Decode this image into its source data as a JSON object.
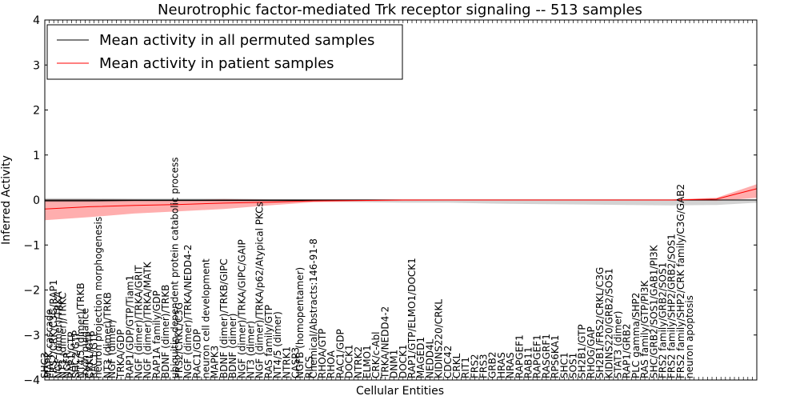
{
  "chart_data": {
    "type": "line",
    "title": "Neurotrophic factor-mediated Trk receptor signaling -- 513 samples",
    "xlabel": "Cellular Entities",
    "ylabel": "Inferred Activity",
    "ylim": [
      -4,
      4
    ],
    "yticks": [
      "−4",
      "−3",
      "−2",
      "−1",
      "0",
      "1",
      "2",
      "3",
      "4"
    ],
    "legend_position": "top-left",
    "colors": {
      "permuted": "#000000",
      "patient": "#ff0000",
      "patient_band": "#ff9a9a",
      "permuted_band": "#c8c8c8"
    },
    "legend": [
      "Mean activity in all permuted samples",
      "Mean activity in patient samples"
    ],
    "entity_count": 160,
    "x": [
      0,
      10,
      20,
      30,
      40,
      50,
      60,
      70,
      80,
      90,
      100,
      110,
      120,
      130,
      140,
      150,
      159
    ],
    "series": [
      {
        "name": "Mean activity in all permuted samples",
        "values": [
          -0.02,
          -0.02,
          -0.01,
          -0.01,
          -0.01,
          -0.01,
          -0.01,
          0,
          0,
          0,
          0,
          0,
          0,
          0,
          0,
          0,
          0
        ],
        "band_upper": [
          0.04,
          0.04,
          0.03,
          0.03,
          0.03,
          0.02,
          0.02,
          0.02,
          0.02,
          0.02,
          0.02,
          0.02,
          0.02,
          0.02,
          0.02,
          0.02,
          0.02
        ],
        "band_lower": [
          -0.06,
          -0.06,
          -0.05,
          -0.05,
          -0.05,
          -0.04,
          -0.04,
          -0.05,
          -0.06,
          -0.06,
          -0.08,
          -0.09,
          -0.1,
          -0.11,
          -0.12,
          -0.11,
          -0.06
        ]
      },
      {
        "name": "Mean activity in patient samples",
        "values": [
          -0.2,
          -0.15,
          -0.12,
          -0.1,
          -0.07,
          -0.05,
          -0.02,
          -0.01,
          0,
          0,
          0,
          0,
          0,
          0,
          0,
          0.02,
          0.25
        ],
        "band_upper": [
          0.01,
          0.01,
          0.01,
          0.0,
          0.02,
          0.01,
          0.01,
          0.01,
          0.01,
          0.01,
          0.01,
          0.01,
          0.01,
          0.01,
          0.01,
          0.05,
          0.35
        ],
        "band_lower": [
          -0.45,
          -0.38,
          -0.3,
          -0.25,
          -0.2,
          -0.12,
          -0.05,
          -0.03,
          -0.02,
          -0.01,
          -0.01,
          -0.01,
          -0.01,
          -0.01,
          -0.01,
          -0.02,
          0.05
        ]
      }
    ],
    "entity_labels": [
      {
        "idx": 0,
        "text": "SHC3"
      },
      {
        "idx": 1,
        "text": "MAPK cascade"
      },
      {
        "idx": 2,
        "text": "FRS2/CRK/C3G/RAP1"
      },
      {
        "idx": 3,
        "text": "NGF (dimer)/TRKA"
      },
      {
        "idx": 4,
        "text": "NT3 (dimer)/TRKC"
      },
      {
        "idx": 5,
        "text": "NGFR"
      },
      {
        "idx": 6,
        "text": "RAP1/GTP"
      },
      {
        "idx": 7,
        "text": "SHC2/GTP"
      },
      {
        "idx": 8,
        "text": "NT4/5 (dimer)/TRKB"
      },
      {
        "idx": 9,
        "text": "axon guidance"
      },
      {
        "idx": 10,
        "text": "CRKL/GTP"
      },
      {
        "idx": 11,
        "text": "RAC1/GTP"
      },
      {
        "idx": 12,
        "text": "neuron projection morphogenesis"
      },
      {
        "idx": 14,
        "text": "NT3 (dimer)/TRKB"
      },
      {
        "idx": 15,
        "text": "NGF (dimer)"
      },
      {
        "idx": 17,
        "text": "TRKA/GDP"
      },
      {
        "idx": 19,
        "text": "RAP1/GDP/GTP/Tiam1"
      },
      {
        "idx": 21,
        "text": "NGF (dimer)/TRKA/GRIT"
      },
      {
        "idx": 23,
        "text": "NGF (dimer)/TRKA/MATK"
      },
      {
        "idx": 25,
        "text": "RAP1A family/GDP"
      },
      {
        "idx": 27,
        "text": "BDNF (dimer)/TRKB"
      },
      {
        "idx": 29,
        "text": "ubiquitin-dependent protein catabolic process"
      },
      {
        "idx": 30,
        "text": "FRS2/CRKL/C3G"
      },
      {
        "idx": 32,
        "text": "NGF (dimer)/TRKA/NEDD4-2"
      },
      {
        "idx": 34,
        "text": "RAC1/GDP"
      },
      {
        "idx": 36,
        "text": "neuron cell development"
      },
      {
        "idx": 38,
        "text": "MAPK3"
      },
      {
        "idx": 40,
        "text": "BDNF (dimer)/TRKB/GIPC"
      },
      {
        "idx": 42,
        "text": "BDNF (dimer)"
      },
      {
        "idx": 44,
        "text": "NGF (dimer)/TRKA/GIPC/GAIP"
      },
      {
        "idx": 46,
        "text": "NT3 (dimer)"
      },
      {
        "idx": 48,
        "text": "NGF (dimer)/TRKA/p62/Atypical PKCs"
      },
      {
        "idx": 50,
        "text": "RAS family/GTP"
      },
      {
        "idx": 52,
        "text": "NT4/5 (dimer)"
      },
      {
        "idx": 54,
        "text": "NTRK1"
      },
      {
        "idx": 56,
        "text": "CASP3"
      },
      {
        "idx": 57,
        "text": "NGFB (homopentamer)"
      },
      {
        "idx": 59,
        "text": "RICS"
      },
      {
        "idx": 60,
        "text": "Chemical/Abstracts:146-91-8"
      },
      {
        "idx": 62,
        "text": "RHOA/GTP"
      },
      {
        "idx": 64,
        "text": "RHOA"
      },
      {
        "idx": 66,
        "text": "RAC1/GDP"
      },
      {
        "idx": 68,
        "text": "DOCK1"
      },
      {
        "idx": 70,
        "text": "NTRK2"
      },
      {
        "idx": 72,
        "text": "ELMO1"
      },
      {
        "idx": 74,
        "text": "CRK/c-Abl"
      },
      {
        "idx": 76,
        "text": "TRKA/NEDD4-2"
      },
      {
        "idx": 78,
        "text": "DNM1"
      },
      {
        "idx": 80,
        "text": "DOCK1"
      },
      {
        "idx": 82,
        "text": "RAP1/GTP/ELMO1/DOCK1"
      },
      {
        "idx": 84,
        "text": "MAGED1"
      },
      {
        "idx": 86,
        "text": "NEDD4L"
      },
      {
        "idx": 88,
        "text": "KIDINS220/CRKL"
      },
      {
        "idx": 90,
        "text": "CDC42"
      },
      {
        "idx": 92,
        "text": "CRKL"
      },
      {
        "idx": 94,
        "text": "RIT1"
      },
      {
        "idx": 96,
        "text": "FRS2"
      },
      {
        "idx": 98,
        "text": "FRS3"
      },
      {
        "idx": 100,
        "text": "GRB2"
      },
      {
        "idx": 102,
        "text": "HRAS"
      },
      {
        "idx": 104,
        "text": "NRAS"
      },
      {
        "idx": 106,
        "text": "RAPGEF1"
      },
      {
        "idx": 108,
        "text": "RAB11"
      },
      {
        "idx": 110,
        "text": "RAPGEF1"
      },
      {
        "idx": 112,
        "text": "RASGRF1"
      },
      {
        "idx": 114,
        "text": "RPS6KA1"
      },
      {
        "idx": 116,
        "text": "SHC1"
      },
      {
        "idx": 118,
        "text": "SOS1"
      },
      {
        "idx": 120,
        "text": "SH2B1/GTP"
      },
      {
        "idx": 122,
        "text": "RHOG/GAP"
      },
      {
        "idx": 124,
        "text": "SH2B1/FRS2/CRKL/C3G"
      },
      {
        "idx": 126,
        "text": "KIDINS220/GRB2/SOS1"
      },
      {
        "idx": 128,
        "text": "STAT3 (dimer)"
      },
      {
        "idx": 130,
        "text": "RAP1/GRB2"
      },
      {
        "idx": 132,
        "text": "PLC gamma/SHP2"
      },
      {
        "idx": 134,
        "text": "RAS family/GTP/PI3K"
      },
      {
        "idx": 136,
        "text": "SHC/GRB2/SOS1/GAB1/PI3K"
      },
      {
        "idx": 138,
        "text": "FRS2 family/GRB2/SOS1"
      },
      {
        "idx": 140,
        "text": "FRS2 family/SHP2/GRB2/SOS1"
      },
      {
        "idx": 142,
        "text": "FRS2 family/SHP2/CRK family/C3G/GAB2"
      },
      {
        "idx": 144,
        "text": "neuron apoptosis"
      }
    ]
  }
}
